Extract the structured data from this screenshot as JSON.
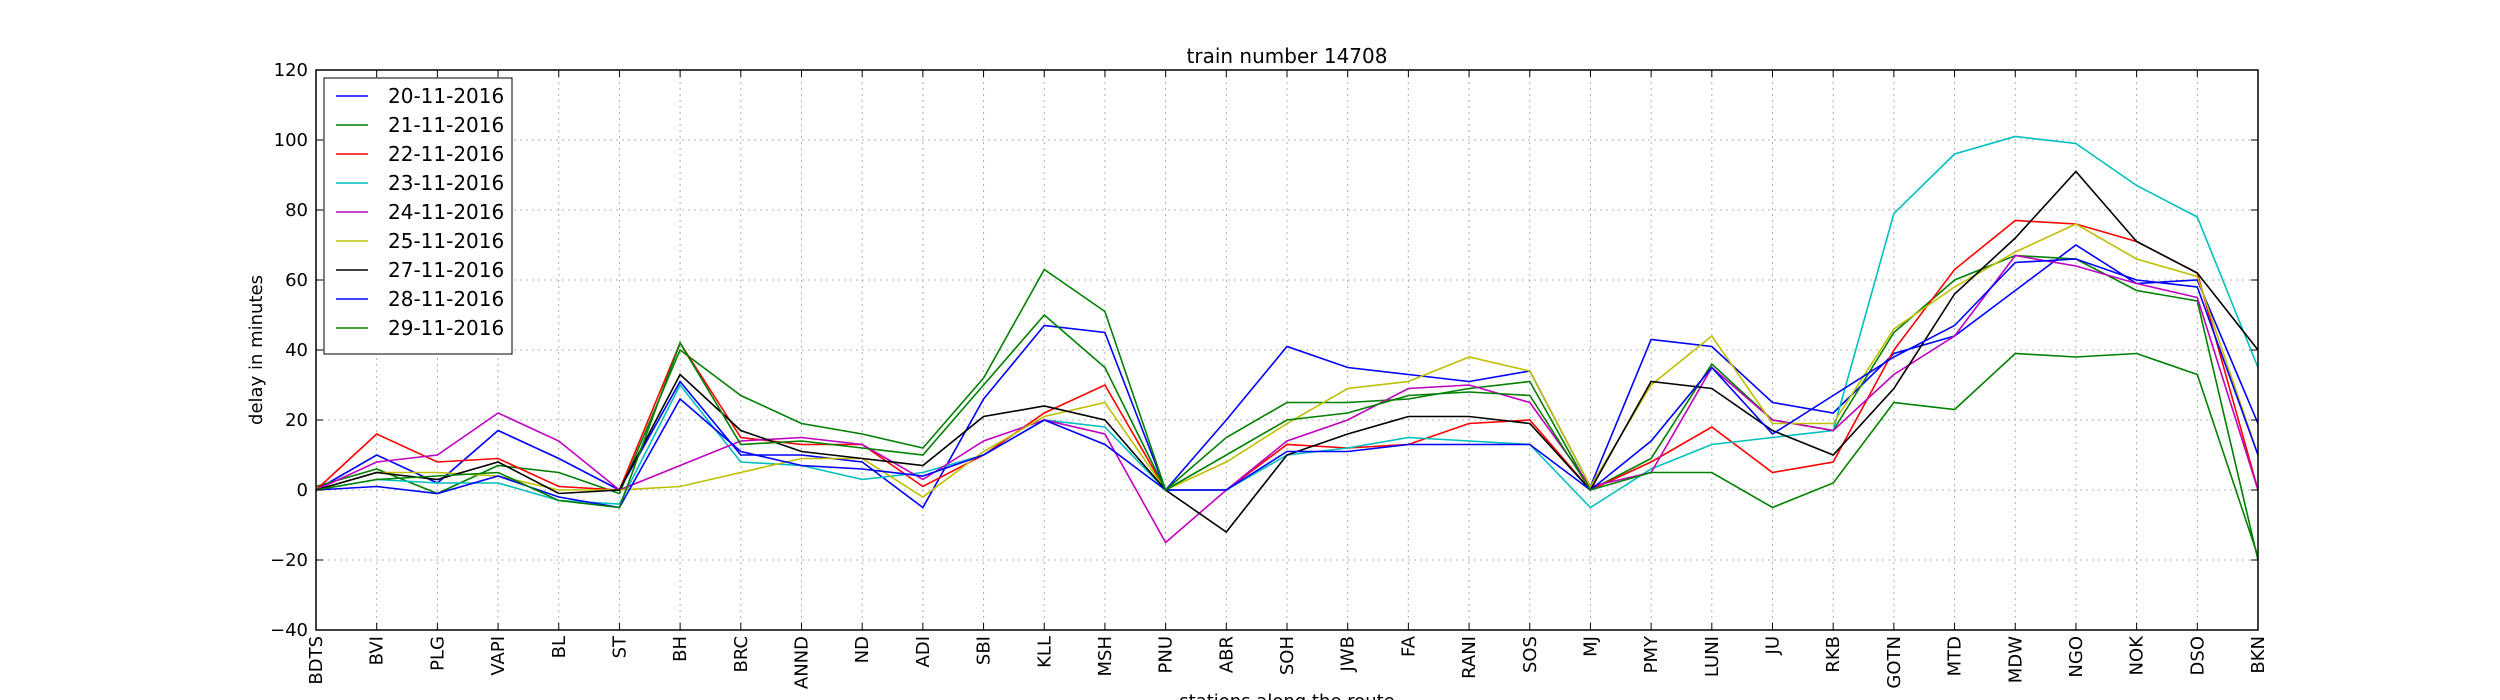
{
  "chart_data": {
    "type": "line",
    "title": "train number 14708",
    "xlabel": "stations along the route",
    "ylabel": "delay in minutes",
    "ylim": [
      -40,
      120
    ],
    "yticks": [
      -40,
      -20,
      0,
      20,
      40,
      60,
      80,
      100,
      120
    ],
    "ytick_labels": [
      "−40",
      "−20",
      "0",
      "20",
      "40",
      "60",
      "80",
      "100",
      "120"
    ],
    "grid": true,
    "legend_position": "top-left",
    "categories": [
      "BDTS",
      "BVI",
      "PLG",
      "VAPI",
      "BL",
      "ST",
      "BH",
      "BRC",
      "ANND",
      "ND",
      "ADI",
      "SBI",
      "KLL",
      "MSH",
      "PNU",
      "ABR",
      "SOH",
      "JWB",
      "FA",
      "RANI",
      "SOS",
      "MJ",
      "PMY",
      "LUNI",
      "JU",
      "RKB",
      "GOTN",
      "MTD",
      "MDW",
      "NGO",
      "NOK",
      "DSO",
      "BKN"
    ],
    "series": [
      {
        "name": "20-11-2016",
        "color": "#0000ff",
        "values": [
          0,
          10,
          2,
          17,
          9,
          0,
          31,
          10,
          10,
          8,
          -5,
          26,
          47,
          45,
          0,
          20,
          41,
          35,
          33,
          31,
          34,
          1,
          43,
          41,
          25,
          22,
          39,
          44,
          57,
          70,
          59,
          60,
          19
        ]
      },
      {
        "name": "21-11-2016",
        "color": "#008000",
        "values": [
          1,
          6,
          -1,
          7,
          5,
          -1,
          40,
          27,
          19,
          16,
          12,
          32,
          63,
          51,
          0,
          15,
          25,
          25,
          26,
          29,
          31,
          0,
          9,
          36,
          20,
          17,
          45,
          60,
          67,
          66,
          57,
          54,
          -20
        ]
      },
      {
        "name": "22-11-2016",
        "color": "#ff0000",
        "values": [
          0,
          16,
          8,
          9,
          1,
          0,
          42,
          15,
          13,
          13,
          1,
          10,
          22,
          30,
          0,
          0,
          13,
          12,
          13,
          19,
          20,
          0,
          8,
          18,
          5,
          8,
          40,
          63,
          77,
          76,
          71,
          62,
          0
        ]
      },
      {
        "name": "23-11-2016",
        "color": "#00bfbf",
        "values": [
          0,
          3,
          2,
          2,
          -3,
          -4,
          30,
          8,
          7,
          3,
          5,
          10,
          20,
          18,
          0,
          0,
          10,
          12,
          15,
          14,
          13,
          -5,
          6,
          13,
          15,
          17,
          79,
          96,
          101,
          99,
          87,
          78,
          35
        ]
      },
      {
        "name": "24-11-2016",
        "color": "#bf00bf",
        "values": [
          0,
          8,
          10,
          22,
          14,
          0,
          7,
          14,
          15,
          13,
          3,
          14,
          20,
          16,
          -15,
          0,
          14,
          20,
          29,
          30,
          25,
          1,
          5,
          35,
          20,
          17,
          33,
          44,
          67,
          64,
          59,
          55,
          0
        ]
      },
      {
        "name": "25-11-2016",
        "color": "#bfbf00",
        "values": [
          0,
          5,
          5,
          4,
          0,
          0,
          1,
          5,
          9,
          9,
          -2,
          11,
          21,
          25,
          0,
          8,
          19,
          29,
          31,
          38,
          34,
          1,
          30,
          44,
          19,
          19,
          46,
          58,
          68,
          76,
          66,
          61,
          10
        ]
      },
      {
        "name": "27-11-2016",
        "color": "#000000",
        "values": [
          0,
          5,
          3,
          8,
          -1,
          0,
          33,
          17,
          11,
          9,
          7,
          21,
          24,
          20,
          0,
          -12,
          10,
          16,
          21,
          21,
          19,
          0,
          31,
          29,
          17,
          10,
          29,
          56,
          72,
          91,
          71,
          62,
          40
        ]
      },
      {
        "name": "28-11-2016",
        "color": "#0000ff",
        "values": [
          0,
          1,
          -1,
          4,
          -2,
          -5,
          26,
          11,
          7,
          6,
          4,
          10,
          20,
          13,
          0,
          0,
          11,
          11,
          13,
          13,
          13,
          0,
          14,
          35,
          16,
          27,
          38,
          47,
          65,
          66,
          60,
          58,
          10
        ]
      },
      {
        "name": "29-11-2016",
        "color": "#008000",
        "values": [
          0,
          3,
          4,
          5,
          -3,
          -5,
          42,
          13,
          14,
          12,
          10,
          30,
          50,
          35,
          0,
          10,
          20,
          22,
          27,
          28,
          27,
          0,
          5,
          5,
          -5,
          2,
          25,
          23,
          39,
          38,
          39,
          33,
          -19
        ]
      }
    ]
  }
}
